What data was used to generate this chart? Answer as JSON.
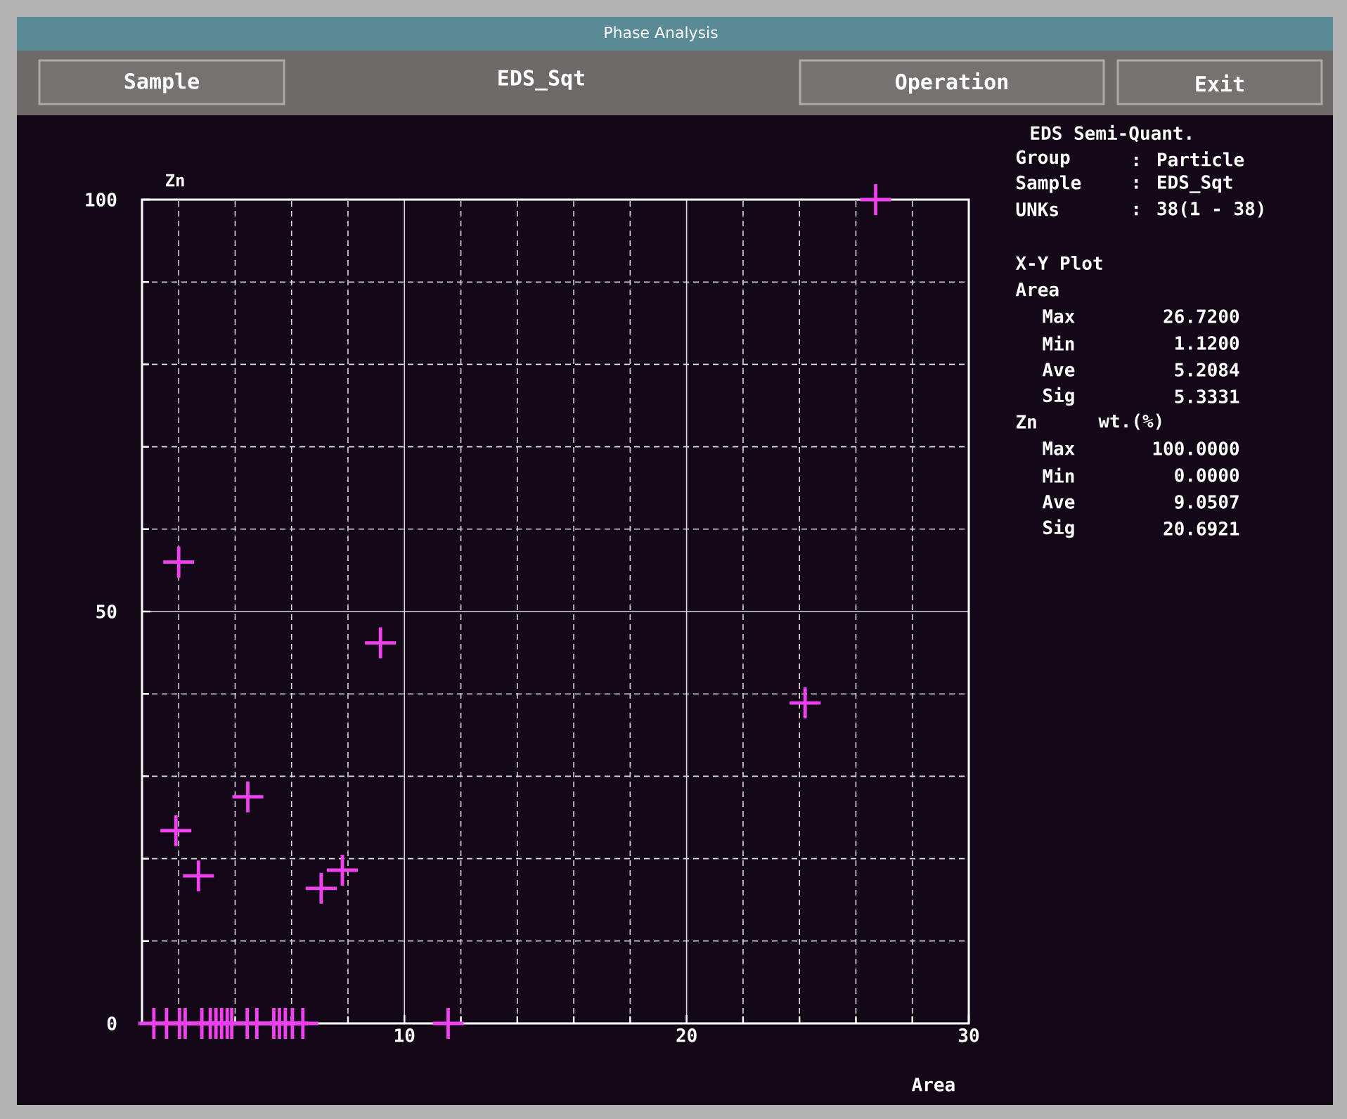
{
  "chart_data": {
    "type": "scatter",
    "title": "Phase Analysis",
    "subtitle": "EDS_Sqt",
    "xlabel": "Area",
    "ylabel": "Zn",
    "annotations": [
      "Sample",
      "Operation",
      "Exit",
      "EDS Semi-Quant.",
      "Group",
      ": Particle",
      "Sample",
      ": EDS_Sqt",
      "UNKs",
      ": 38(1 - 38)",
      "X-Y Plot",
      "Area",
      "Max",
      "26.7200",
      "Min",
      "1.1200",
      "Ave",
      "5.2084",
      "Sig",
      "5.3331",
      "Zn",
      "wt.(%)",
      "Max",
      "100.0000",
      "Min",
      "0.0000",
      "Ave",
      "9.0507",
      "Sig",
      "20.6921"
    ],
    "x": [
      2.0,
      9.15,
      24.2,
      26.7,
      4.45,
      1.9,
      2.7,
      7.05,
      7.8,
      11.55,
      1.12,
      1.57,
      2.03,
      2.23,
      2.82,
      3.12,
      3.32,
      3.52,
      3.72,
      3.88,
      4.43,
      4.77,
      5.37,
      5.57,
      5.78,
      6.03,
      6.4
    ],
    "series": [
      {
        "color": "#f040f0",
        "values": [
          56.0,
          46.2,
          38.9,
          100,
          27.5,
          23.4,
          17.9,
          16.4,
          18.6,
          0,
          0,
          0,
          0,
          0,
          0,
          0,
          0,
          0,
          0,
          0,
          0,
          0,
          0,
          0,
          0,
          0,
          0
        ]
      }
    ],
    "xlim": [
      0.7,
      30
    ],
    "xticks": [
      {
        "value": 2,
        "label": null
      },
      {
        "value": 4,
        "label": null
      },
      {
        "value": 6,
        "label": null
      },
      {
        "value": 8,
        "label": null
      },
      10,
      {
        "value": 12,
        "label": null
      },
      {
        "value": 14,
        "label": null
      },
      {
        "value": 16,
        "label": null
      },
      {
        "value": 18,
        "label": null
      },
      20,
      {
        "value": 22,
        "label": null
      },
      {
        "value": 24,
        "label": null
      },
      {
        "value": 26,
        "label": null
      },
      {
        "value": 28,
        "label": null
      },
      30
    ],
    "ylim": [
      0,
      100
    ],
    "yticks": [
      0,
      {
        "value": 10,
        "label": null
      },
      {
        "value": 20,
        "label": null
      },
      {
        "value": 30,
        "label": null
      },
      {
        "value": 40,
        "label": null
      },
      50,
      {
        "value": 60,
        "label": null
      },
      {
        "value": 70,
        "label": null
      },
      {
        "value": 80,
        "label": null
      },
      {
        "value": 90,
        "label": null
      },
      100
    ],
    "grid": true,
    "marker": "cross"
  }
}
